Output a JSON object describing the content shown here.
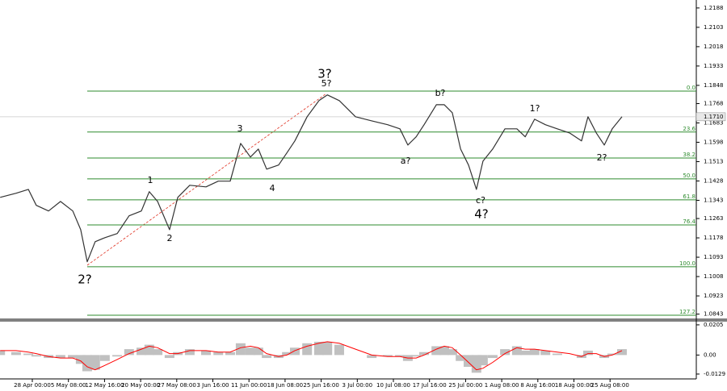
{
  "chart_data": {
    "type": "line",
    "x": [
      -0.89,
      -0.45,
      -0.11,
      0.11,
      0.45,
      0.78,
      1.12,
      1.34,
      1.52,
      1.74,
      2.01,
      2.35,
      2.68,
      3.02,
      3.24,
      3.47,
      3.8,
      4.03,
      4.36,
      4.81,
      5.15,
      5.48,
      5.77,
      6.04,
      6.26,
      6.49,
      6.82,
      7.05,
      7.27,
      7.61,
      7.94,
      8.17,
      8.5,
      8.95,
      9.4,
      9.84,
      10.18,
      10.4,
      10.63,
      10.85,
      11.19,
      11.41,
      11.63,
      11.86,
      12.08,
      12.3,
      12.48,
      12.75,
      13.09,
      13.42,
      13.65,
      13.91,
      14.21,
      14.54,
      14.88,
      15.21,
      15.39,
      15.62,
      15.84,
      16.06,
      16.33
    ],
    "values": [
      1.1356,
      1.1374,
      1.1391,
      1.1321,
      1.1296,
      1.1338,
      1.1296,
      1.1214,
      1.1073,
      1.1161,
      1.1179,
      1.1197,
      1.1275,
      1.1296,
      1.1381,
      1.1338,
      1.1214,
      1.1356,
      1.1409,
      1.1402,
      1.1427,
      1.1427,
      1.1593,
      1.1533,
      1.1568,
      1.148,
      1.1498,
      1.1551,
      1.1604,
      1.171,
      1.1781,
      1.1806,
      1.1781,
      1.171,
      1.1692,
      1.1675,
      1.1657,
      1.1586,
      1.1622,
      1.1675,
      1.1763,
      1.1763,
      1.1728,
      1.1568,
      1.1498,
      1.1391,
      1.1515,
      1.1568,
      1.1657,
      1.1657,
      1.1622,
      1.1699,
      1.1675,
      1.1657,
      1.1639,
      1.1604,
      1.171,
      1.1639,
      1.1586,
      1.1657,
      1.171
    ],
    "color": "#333333",
    "xlim": [
      -0.895,
      18.389
    ],
    "xticks": [
      {
        "value": 0,
        "label": "28 Apr 00:00"
      },
      {
        "value": 1,
        "label": "5 May 08:00"
      },
      {
        "value": 2,
        "label": "12 May 16:00"
      },
      {
        "value": 3,
        "label": "20 May 00:00"
      },
      {
        "value": 4,
        "label": "27 May 08:00"
      },
      {
        "value": 5,
        "label": "3 Jun 16:00"
      },
      {
        "value": 6,
        "label": "11 Jun 00:00"
      },
      {
        "value": 7,
        "label": "18 Jun 08:00"
      },
      {
        "value": 8,
        "label": "25 Jun 16:00"
      },
      {
        "value": 9,
        "label": "3 Jul 00:00"
      },
      {
        "value": 10,
        "label": "10 Jul 08:00"
      },
      {
        "value": 11,
        "label": "17 Jul 16:00"
      },
      {
        "value": 12,
        "label": "25 Jul 00:00"
      },
      {
        "value": 13,
        "label": "1 Aug 08:00"
      },
      {
        "value": 14,
        "label": "8 Aug 16:00"
      },
      {
        "value": 15,
        "label": "18 Aug 00:00"
      },
      {
        "value": 16,
        "label": "25 Aug 08:00"
      }
    ],
    "ylim": [
      1.0824,
      1.2223
    ],
    "yticks": [
      1.2188,
      1.2103,
      1.2018,
      1.1933,
      1.1848,
      1.1768,
      1.1683,
      1.1598,
      1.1513,
      1.1428,
      1.1343,
      1.1263,
      1.1178,
      1.1093,
      1.1008,
      1.0923,
      1.0843
    ],
    "current_price": {
      "value": 1.171,
      "label": "1.1710"
    },
    "fib_levels": [
      {
        "label": "0.0",
        "value": 1.1823
      },
      {
        "label": "23.6",
        "value": 1.1643
      },
      {
        "label": "38.2",
        "value": 1.1529
      },
      {
        "label": "50.0",
        "value": 1.1437
      },
      {
        "label": "61.8",
        "value": 1.1345
      },
      {
        "label": "76.4",
        "value": 1.1235
      },
      {
        "label": "100.0",
        "value": 1.1051
      },
      {
        "label": "127.2",
        "value": 1.0838
      }
    ],
    "fib_color": "#2e8b2e",
    "annotations": [
      {
        "text": "3?",
        "color": "#0000ff"
      },
      {
        "text": "5?",
        "color": "#e03020"
      },
      {
        "text": "3",
        "color": "#e03020"
      },
      {
        "text": "1",
        "color": "#e03020"
      },
      {
        "text": "2",
        "color": "#e03020"
      },
      {
        "text": "4",
        "color": "#e03020"
      },
      {
        "text": "2?",
        "color": "#0000ff"
      },
      {
        "text": "a?",
        "color": "#e03020"
      },
      {
        "text": "b?",
        "color": "#e03020"
      },
      {
        "text": "c?",
        "color": "#e03020"
      },
      {
        "text": "4?",
        "color": "#0000ff"
      },
      {
        "text": "1?",
        "color": "#e03020"
      },
      {
        "text": "2?",
        "color": "#e03020"
      }
    ],
    "oscillator": {
      "histogram": [
        0.003,
        0.002,
        0.001,
        -0.001,
        -0.002,
        -0.002,
        -0.002,
        -0.006,
        -0.011,
        -0.01,
        -0.004,
        -0.001,
        0.004,
        0.005,
        0.007,
        0.004,
        -0.002,
        0.002,
        0.004,
        0.003,
        0.002,
        0.002,
        0.008,
        0.005,
        0.005,
        -0.002,
        -0.002,
        0.002,
        0.005,
        0.008,
        0.009,
        0.009,
        0.007,
        0,
        -0.002,
        -0.001,
        -0.001,
        -0.004,
        -0.001,
        0.002,
        0.006,
        0.006,
        0.004,
        -0.004,
        -0.008,
        -0.012,
        -0.007,
        -0.002,
        0.004,
        0.006,
        0.003,
        0.004,
        0.003,
        0.001,
        0,
        -0.002,
        0.003,
        0,
        -0.002,
        0.001,
        0.004
      ],
      "signal": [
        0.003,
        0.003,
        0.002,
        0.001,
        -0.001,
        -0.002,
        -0.002,
        -0.004,
        -0.008,
        -0.01,
        -0.007,
        -0.003,
        0.001,
        0.004,
        0.006,
        0.005,
        0.001,
        0.001,
        0.003,
        0.003,
        0.002,
        0.002,
        0.005,
        0.006,
        0.005,
        0.001,
        -0.001,
        0,
        0.003,
        0.006,
        0.008,
        0.009,
        0.008,
        0.004,
        0,
        -0.001,
        -0.001,
        -0.002,
        -0.002,
        0,
        0.004,
        0.006,
        0.005,
        0,
        -0.005,
        -0.01,
        -0.009,
        -0.005,
        0.001,
        0.005,
        0.004,
        0.004,
        0.003,
        0.002,
        0.001,
        -0.001,
        0.001,
        0.001,
        -0.001,
        0,
        0.003
      ],
      "histogram_color": "#c0c0c0",
      "signal_color": "#ff0000",
      "ylim": [
        -0.0162,
        0.0232
      ],
      "yticks": [
        0.0205,
        {
          "value": 0,
          "label": "0.00"
        },
        -0.0129
      ]
    }
  }
}
